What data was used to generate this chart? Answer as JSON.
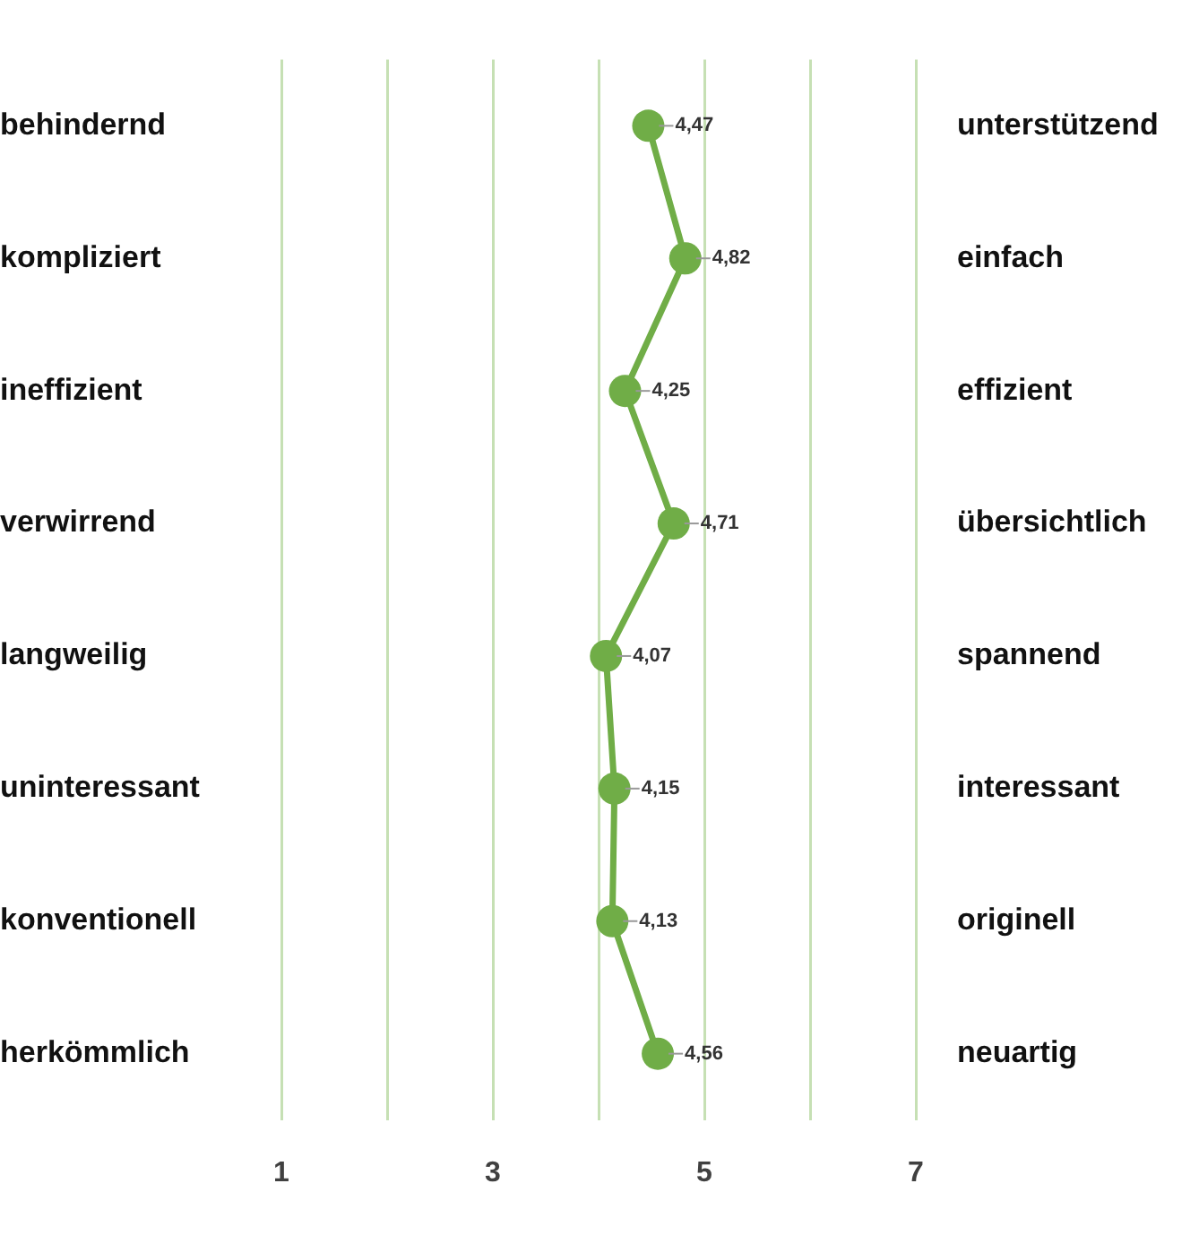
{
  "chart_data": {
    "type": "line",
    "orientation": "horizontal",
    "categories": [
      "behindernd",
      "kompliziert",
      "ineffizient",
      "verwirrend",
      "langweilig",
      "uninteressant",
      "konventionell",
      "herkömmlich"
    ],
    "y2_categories": [
      "unterstützend",
      "einfach",
      "effizient",
      "übersichtlich",
      "spannend",
      "interessant",
      "originell",
      "neuartig"
    ],
    "values": [
      4.47,
      4.82,
      4.25,
      4.71,
      4.07,
      4.15,
      4.13,
      4.56
    ],
    "value_labels": [
      "4,47",
      "4,82",
      "4,25",
      "4,71",
      "4,07",
      "4,15",
      "4,13",
      "4,56"
    ],
    "color": "#70ad47",
    "marker": "circle",
    "line_style": "solid",
    "xlim": [
      1,
      7
    ],
    "xticks": [
      1,
      {
        "value": 2,
        "label": null
      },
      3,
      {
        "value": 4,
        "label": null
      },
      5,
      {
        "value": 6,
        "label": null
      },
      7
    ],
    "grid": "x"
  }
}
